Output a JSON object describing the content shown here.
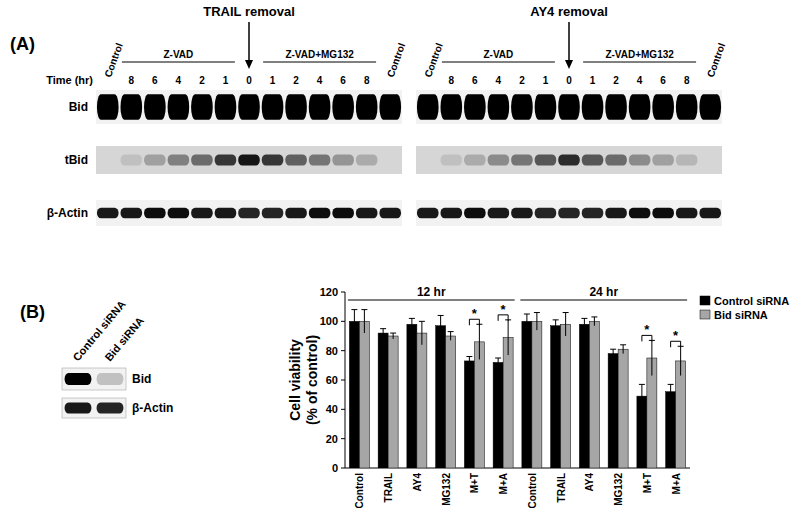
{
  "figure": {
    "panel_a_label": "(A)",
    "panel_b_label": "(B)"
  },
  "blots": [
    {
      "title": "TRAIL removal",
      "time_axis_label": "Time (hr)",
      "lanes": [
        "Control",
        null,
        null,
        null,
        null,
        null,
        null,
        null,
        null,
        null,
        null,
        null,
        "Control"
      ],
      "times": [
        null,
        "8",
        "6",
        "4",
        "2",
        "1",
        "0",
        "1",
        "2",
        "4",
        "6",
        "8",
        null
      ],
      "groups": [
        {
          "label": "Z-VAD",
          "lanes": [
            1,
            5
          ]
        },
        {
          "label": "Z-VAD+MG132",
          "lanes": [
            7,
            11
          ]
        }
      ],
      "rows": [
        {
          "label": "Bid",
          "intensity": [
            1,
            1,
            1,
            1,
            1,
            1,
            1,
            1,
            1,
            1,
            1,
            1,
            1
          ]
        },
        {
          "label": "tBid",
          "intensity": [
            0,
            0.1,
            0.25,
            0.4,
            0.5,
            0.75,
            0.9,
            0.75,
            0.55,
            0.45,
            0.3,
            0.2,
            0
          ]
        },
        {
          "label": "β-Actin",
          "intensity": [
            0.9,
            0.9,
            0.95,
            0.95,
            0.9,
            0.9,
            0.85,
            0.85,
            0.9,
            0.95,
            0.95,
            0.9,
            0.9
          ]
        }
      ]
    },
    {
      "title": "AY4 removal",
      "lanes": [
        "Control",
        null,
        null,
        null,
        null,
        null,
        null,
        null,
        null,
        null,
        null,
        null,
        "Control"
      ],
      "times": [
        null,
        "8",
        "6",
        "4",
        "2",
        "1",
        "0",
        "1",
        "2",
        "4",
        "6",
        "8",
        null
      ],
      "groups": [
        {
          "label": "Z-VAD",
          "lanes": [
            1,
            5
          ]
        },
        {
          "label": "Z-VAD+MG132",
          "lanes": [
            7,
            11
          ]
        }
      ],
      "rows": [
        {
          "label": "Bid",
          "intensity": [
            1,
            1,
            1,
            1,
            1,
            1,
            1,
            1,
            1,
            1,
            1,
            1,
            1
          ]
        },
        {
          "label": "tBid",
          "intensity": [
            0,
            0.1,
            0.2,
            0.35,
            0.45,
            0.6,
            0.8,
            0.6,
            0.5,
            0.35,
            0.25,
            0.15,
            0
          ]
        },
        {
          "label": "β-Actin",
          "intensity": [
            0.9,
            0.9,
            0.95,
            0.9,
            0.9,
            0.85,
            0.85,
            0.85,
            0.9,
            0.95,
            0.95,
            0.9,
            0.9
          ]
        }
      ]
    }
  ],
  "knockdown_blot": {
    "lanes": [
      "Control siRNA",
      "Bid siRNA"
    ],
    "rows": [
      {
        "label": "Bid",
        "intensity": [
          1,
          0.2
        ]
      },
      {
        "label": "β-Actin",
        "intensity": [
          0.9,
          0.85
        ]
      }
    ]
  },
  "chart_data": {
    "type": "bar",
    "y_label": [
      "Cell viability",
      "(% of control)"
    ],
    "categories": [
      "Control",
      "TRAIL",
      "AY4",
      "MG132",
      "M+T",
      "M+A",
      "Control",
      "TRAIL",
      "AY4",
      "MG132",
      "M+T",
      "M+A"
    ],
    "groups": [
      {
        "label": "12 hr",
        "from": 0,
        "to": 5
      },
      {
        "label": "24 hr",
        "from": 6,
        "to": 11
      }
    ],
    "series": [
      {
        "name": "Control siRNA",
        "color": "#000000",
        "values": [
          100,
          92,
          98,
          97,
          73,
          72,
          100,
          97,
          98,
          78,
          49,
          52
        ],
        "errors": [
          8,
          3,
          4,
          7,
          3,
          3,
          5,
          4,
          4,
          3,
          8,
          5
        ]
      },
      {
        "name": "Bid siRNA",
        "color": "#a6a6a6",
        "values": [
          100,
          90,
          92,
          90,
          86,
          89,
          100,
          98,
          100,
          81,
          75,
          73
        ],
        "errors": [
          8,
          2,
          8,
          3,
          12,
          12,
          6,
          8,
          3,
          3,
          12,
          10
        ]
      }
    ],
    "annotations": [
      {
        "text": "*",
        "category": 4
      },
      {
        "text": "*",
        "category": 5
      },
      {
        "text": "*",
        "category": 10
      },
      {
        "text": "*",
        "category": 11
      }
    ],
    "ylim": [
      0,
      120
    ],
    "yticks": [
      0,
      20,
      40,
      60,
      80,
      100,
      120
    ],
    "legend": "top-right",
    "grid": false
  }
}
